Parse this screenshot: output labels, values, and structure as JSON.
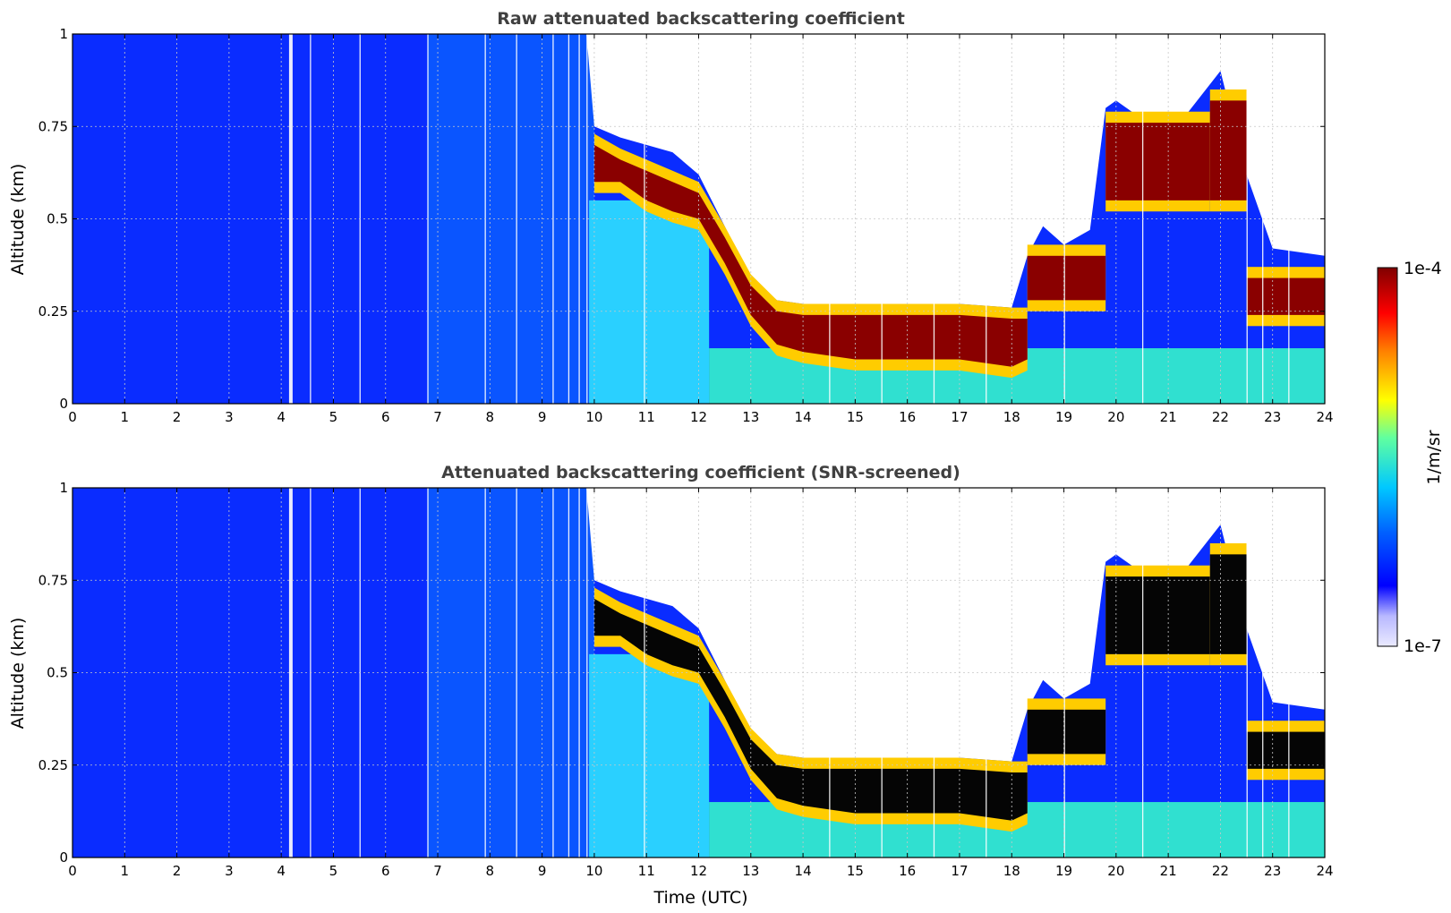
{
  "chart_data": [
    {
      "type": "heatmap",
      "title": "Raw attenuated backscattering coefficient",
      "xlabel": "",
      "ylabel": "Altitude (km)",
      "xlim": [
        0,
        24
      ],
      "ylim": [
        0,
        1
      ],
      "x_ticks": [
        "0",
        "1",
        "2",
        "3",
        "4",
        "5",
        "6",
        "7",
        "8",
        "9",
        "10",
        "11",
        "12",
        "13",
        "14",
        "15",
        "16",
        "17",
        "18",
        "19",
        "20",
        "21",
        "22",
        "23",
        "24"
      ],
      "y_ticks": [
        "0",
        "0.25",
        "0.5",
        "0.75",
        "1"
      ],
      "grid": true,
      "screened": false,
      "features": [
        {
          "name": "boundary-layer-top",
          "x": [
            10.0,
            10.5,
            11.0,
            11.5,
            12.0,
            12.5,
            13.0,
            13.5,
            14.0,
            15.0,
            16.0,
            17.0,
            18.0,
            18.3
          ],
          "y": [
            0.66,
            0.66,
            0.63,
            0.6,
            0.55,
            0.43,
            0.3,
            0.22,
            0.2,
            0.17,
            0.17,
            0.17,
            0.15,
            0.15
          ]
        },
        {
          "name": "aerosol-layer-evening",
          "x": [
            18.3,
            19.0,
            19.7,
            20.0,
            21.0,
            22.0,
            22.5,
            23.0,
            24.0
          ],
          "y": [
            0.35,
            0.34,
            0.36,
            0.7,
            0.65,
            0.8,
            0.6,
            0.3,
            0.3
          ]
        }
      ]
    },
    {
      "type": "heatmap",
      "title": "Attenuated backscattering coefficient (SNR-screened)",
      "xlabel": "Time (UTC)",
      "ylabel": "Altitude (km)",
      "xlim": [
        0,
        24
      ],
      "ylim": [
        0,
        1
      ],
      "x_ticks": [
        "0",
        "1",
        "2",
        "3",
        "4",
        "5",
        "6",
        "7",
        "8",
        "9",
        "10",
        "11",
        "12",
        "13",
        "14",
        "15",
        "16",
        "17",
        "18",
        "19",
        "20",
        "21",
        "22",
        "23",
        "24"
      ],
      "y_ticks": [
        "0",
        "0.25",
        "0.5",
        "0.75",
        "1"
      ],
      "grid": true,
      "screened": true
    }
  ],
  "colorbar": {
    "label": "1/m/sr",
    "min_label": "1e-7",
    "max_label": "1e-4",
    "scale": "log",
    "colormap": "jet"
  }
}
